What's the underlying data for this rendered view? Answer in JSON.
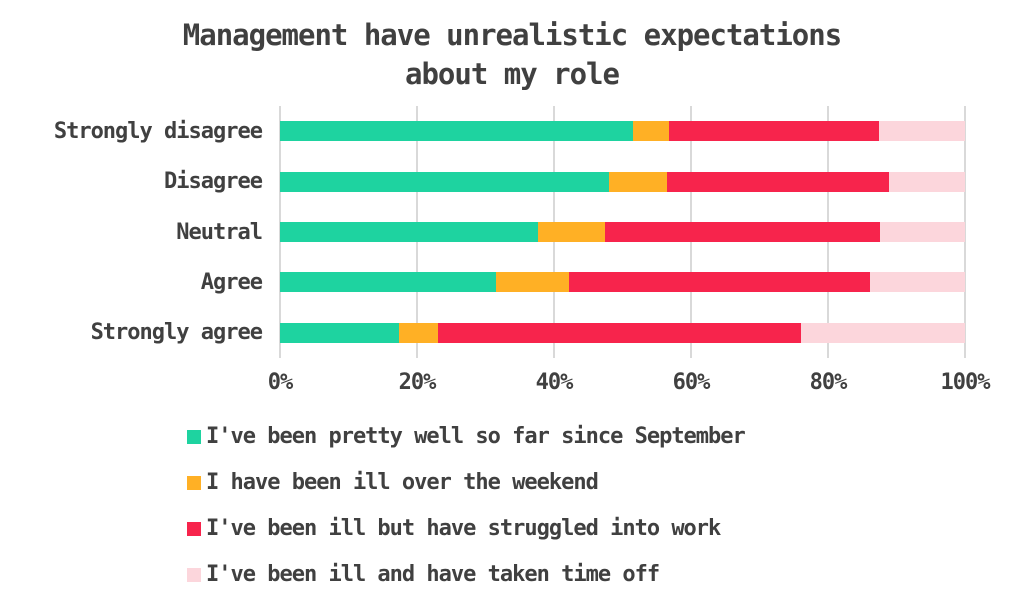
{
  "chart_data": {
    "type": "bar",
    "variant": "horizontal-stacked",
    "title": "Management have unrealistic expectations about my role",
    "title_lines": [
      "Management have unrealistic expectations",
      "about my role"
    ],
    "categories": [
      "Strongly disagree",
      "Disagree",
      "Neutral",
      "Agree",
      "Strongly agree"
    ],
    "series": [
      {
        "name": "I've been pretty well so far since September",
        "color": "#1ED3A0",
        "values": [
          51.6,
          48.1,
          37.7,
          31.5,
          17.4
        ]
      },
      {
        "name": "I have been ill over the weekend",
        "color": "#FFB025",
        "values": [
          5.2,
          8.4,
          9.7,
          10.7,
          5.6
        ]
      },
      {
        "name": "I've been ill but have struggled into work",
        "color": "#F7244C",
        "values": [
          30.7,
          32.4,
          40.2,
          44.0,
          53.0
        ]
      },
      {
        "name": "I've been ill and have taken time off",
        "color": "#FCD6DC",
        "values": [
          12.5,
          11.1,
          12.4,
          13.8,
          24.0
        ]
      }
    ],
    "x_axis": {
      "min": 0,
      "max": 100,
      "tick_values": [
        0,
        20,
        40,
        60,
        80,
        100
      ],
      "tick_labels": [
        "0%",
        "20%",
        "40%",
        "60%",
        "80%",
        "100%"
      ]
    },
    "xlabel": "",
    "ylabel": "",
    "grid": true,
    "grid_color": "#D9D9D9",
    "text_color": "#404040",
    "legend_position": "bottom-left"
  }
}
